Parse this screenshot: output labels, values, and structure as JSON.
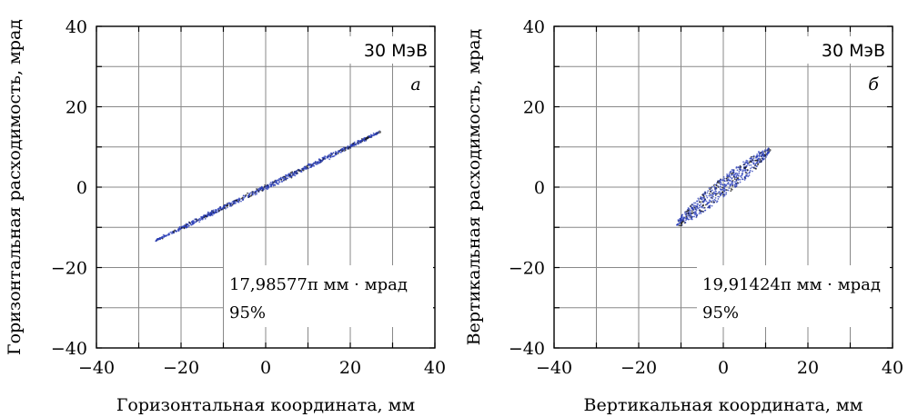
{
  "chart_data": [
    {
      "type": "scatter",
      "panel_label": "а",
      "energy_label": "30 МэВ",
      "xlabel": "Горизонтальная координата, мм",
      "ylabel": "Горизонтальная расходимость, мрад",
      "xlim": [
        -40,
        40
      ],
      "ylim": [
        -40,
        40
      ],
      "xticks": [
        "−40",
        "−20",
        "0",
        "20",
        "40"
      ],
      "yticks": [
        "40",
        "20",
        "0",
        "−20",
        "−40"
      ],
      "grid": true,
      "emittance_text": "17,98577π мм · мрад",
      "percent_text": "95%",
      "distribution": {
        "shape": "ellipse",
        "center": [
          0,
          0
        ],
        "x_extent": [
          -26,
          27
        ],
        "y_extent": [
          -13.5,
          13.7
        ],
        "slope": 0.51,
        "width_mrad": 0.55
      },
      "colors": {
        "core": "#2b3fb8",
        "halo": "#111111"
      }
    },
    {
      "type": "scatter",
      "panel_label": "б",
      "energy_label": "30 МэВ",
      "xlabel": "Вертикальная координата, мм",
      "ylabel": "Вертикальная расходимость, мрад",
      "xlim": [
        -40,
        40
      ],
      "ylim": [
        -40,
        40
      ],
      "xticks": [
        "−40",
        "−20",
        "0",
        "20",
        "40"
      ],
      "yticks": [
        "40",
        "20",
        "0",
        "−20",
        "−40"
      ],
      "grid": true,
      "emittance_text": "19,91424π мм · мрад",
      "percent_text": "95%",
      "distribution": {
        "shape": "ellipse",
        "center": [
          0,
          0
        ],
        "x_extent": [
          -11,
          11
        ],
        "y_extent": [
          -9.2,
          9.2
        ],
        "slope": 0.84,
        "width_mrad": 2.6
      },
      "colors": {
        "core": "#2b3fb8",
        "halo": "#111111"
      }
    }
  ]
}
